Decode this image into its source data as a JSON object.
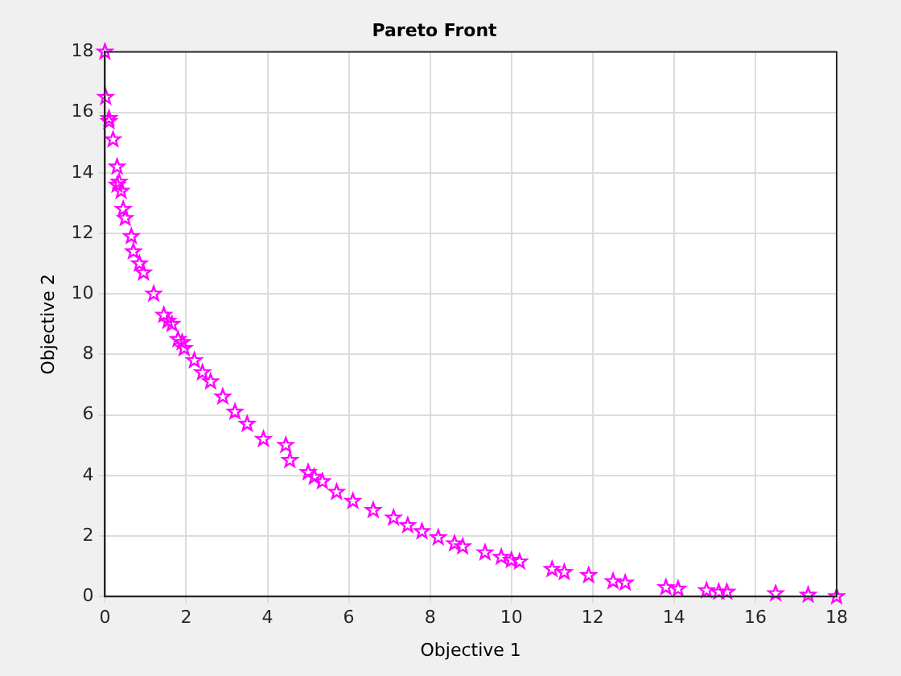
{
  "chart_data": {
    "type": "scatter",
    "title": "Pareto Front",
    "xlabel": "Objective 1",
    "ylabel": "Objective 2",
    "x": [
      0,
      0.02,
      0.1,
      0.1,
      0.2,
      0.3,
      0.35,
      0.3,
      0.4,
      0.45,
      0.5,
      0.65,
      0.7,
      0.85,
      0.95,
      1.2,
      1.45,
      1.55,
      1.65,
      1.8,
      1.9,
      1.95,
      2.2,
      2.4,
      2.6,
      2.9,
      3.2,
      3.5,
      3.9,
      4.45,
      4.55,
      5.0,
      5.15,
      5.35,
      5.7,
      6.1,
      6.6,
      7.1,
      7.45,
      7.8,
      8.2,
      8.6,
      8.8,
      9.35,
      9.75,
      10.0,
      10.2,
      11.0,
      11.3,
      11.9,
      12.5,
      12.8,
      13.8,
      14.1,
      14.8,
      15.1,
      15.3,
      16.5,
      17.3,
      18
    ],
    "series": [
      {
        "color": "#ff00ff",
        "values": [
          18,
          16.5,
          15.8,
          15.7,
          15.1,
          14.2,
          13.7,
          13.6,
          13.4,
          12.8,
          12.5,
          11.9,
          11.4,
          11.0,
          10.7,
          10.0,
          9.3,
          9.1,
          9.0,
          8.5,
          8.4,
          8.2,
          7.8,
          7.4,
          7.1,
          6.6,
          6.1,
          5.7,
          5.2,
          5.0,
          4.5,
          4.1,
          3.95,
          3.8,
          3.45,
          3.15,
          2.85,
          2.6,
          2.35,
          2.15,
          1.95,
          1.75,
          1.65,
          1.45,
          1.3,
          1.2,
          1.15,
          0.9,
          0.8,
          0.7,
          0.5,
          0.45,
          0.3,
          0.25,
          0.2,
          0.15,
          0.15,
          0.1,
          0.05,
          0
        ]
      }
    ],
    "xlim": [
      0,
      18
    ],
    "xticks": [
      0,
      2,
      4,
      6,
      8,
      10,
      12,
      14,
      16,
      18
    ],
    "ylim": [
      0,
      18
    ],
    "yticks": [
      0,
      2,
      4,
      6,
      8,
      10,
      12,
      14,
      16,
      18
    ],
    "grid": true,
    "legend": false,
    "marker": "star"
  }
}
